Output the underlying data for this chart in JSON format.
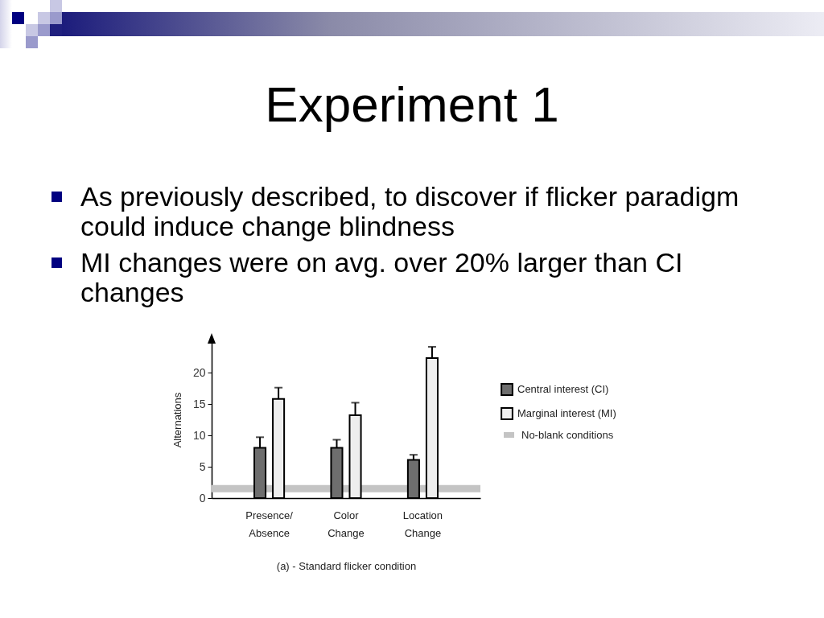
{
  "chart_data": {
    "type": "bar",
    "title": "Experiment 1",
    "annotations": [
      "As previously described, to discover if flicker paradigm could induce change blindness",
      "MI changes were on avg. over 20% larger than CI changes"
    ],
    "xlabel": "(a) - Standard flicker condition",
    "ylabel": "Alternations",
    "categories": [
      "Presence/ Absence",
      "Color Change",
      "Location Change"
    ],
    "series": [
      {
        "name": "Central interest (CI)",
        "color": "#6e6e6e",
        "values": [
          8,
          8,
          6.1
        ],
        "errors": [
          [
            8,
            9.7
          ],
          [
            8,
            9.3
          ],
          [
            6.1,
            6.9
          ]
        ]
      },
      {
        "name": "Marginal interest (MI)",
        "color": "#eeeeee",
        "values": [
          15.8,
          13.2,
          22.3
        ],
        "errors": [
          [
            15.8,
            17.6
          ],
          [
            13.2,
            15.2
          ],
          [
            22.3,
            24.1
          ]
        ]
      }
    ],
    "ylim": [
      0,
      25
    ],
    "yticks": [
      0,
      5,
      10,
      15,
      20
    ],
    "ref_lines": [
      {
        "axis": "y",
        "value": 1.5,
        "label": "No-blank conditions",
        "color": "#c4c4c4"
      }
    ],
    "legend": "right"
  }
}
